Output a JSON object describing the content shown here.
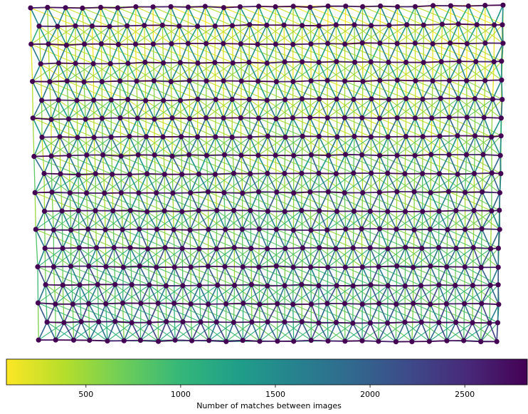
{
  "chart_data": {
    "type": "network-graph",
    "description_of_layout": "",
    "grid": {
      "rows": 19,
      "cols": 28,
      "row_offset_alternating": true
    },
    "edge_colormap": "viridis_r",
    "colorbar": {
      "label": "Number of matches between images",
      "range": [
        80,
        2830
      ],
      "ticks": [
        500,
        1000,
        1500,
        2000,
        2500
      ],
      "colors": [
        "#fde725",
        "#b5de2b",
        "#6ece58",
        "#35b779",
        "#1f9e89",
        "#26828e",
        "#31688e",
        "#3e4989",
        "#482878",
        "#440154"
      ]
    },
    "node_color": "#440154",
    "edge_values_summary": {
      "horizontal_neighbors": 2700,
      "diagonal_neighbors_top": 1300,
      "diagonal_neighbors_bottom": 2100,
      "long_range_top": 250,
      "long_range_bottom": 900
    }
  }
}
